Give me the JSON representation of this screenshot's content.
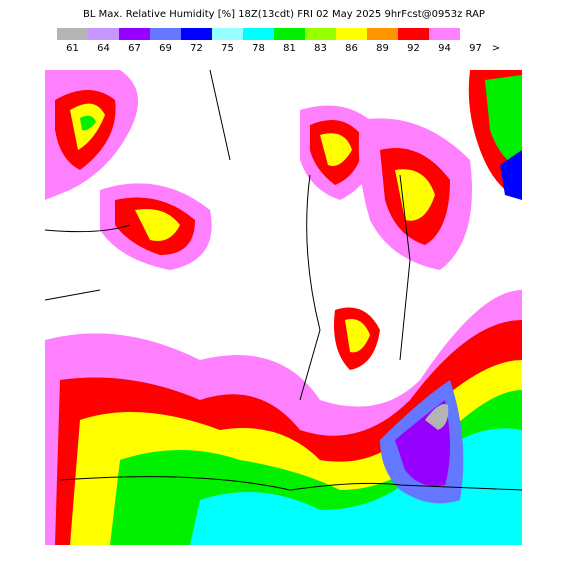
{
  "header": {
    "title": "BL Max. Relative Humidity [%] 18Z(13cdt) FRI 02 May 2025 9hrFcst@0953z RAP"
  },
  "legend": {
    "items": [
      {
        "label": "61",
        "color": "#b4b4b4"
      },
      {
        "label": "64",
        "color": "#c896ff"
      },
      {
        "label": "67",
        "color": "#9600ff"
      },
      {
        "label": "69",
        "color": "#6478ff"
      },
      {
        "label": "72",
        "color": "#0000ff"
      },
      {
        "label": "75",
        "color": "#96ffff"
      },
      {
        "label": "78",
        "color": "#00ffff"
      },
      {
        "label": "81",
        "color": "#00f000"
      },
      {
        "label": "83",
        "color": "#96ff00"
      },
      {
        "label": "86",
        "color": "#ffff00"
      },
      {
        "label": "89",
        "color": "#ff9600"
      },
      {
        "label": "92",
        "color": "#ff0000"
      },
      {
        "label": "94",
        "color": "#ff80ff"
      },
      {
        "label": "97",
        "color": "#ffffff"
      }
    ],
    "more": ">"
  }
}
